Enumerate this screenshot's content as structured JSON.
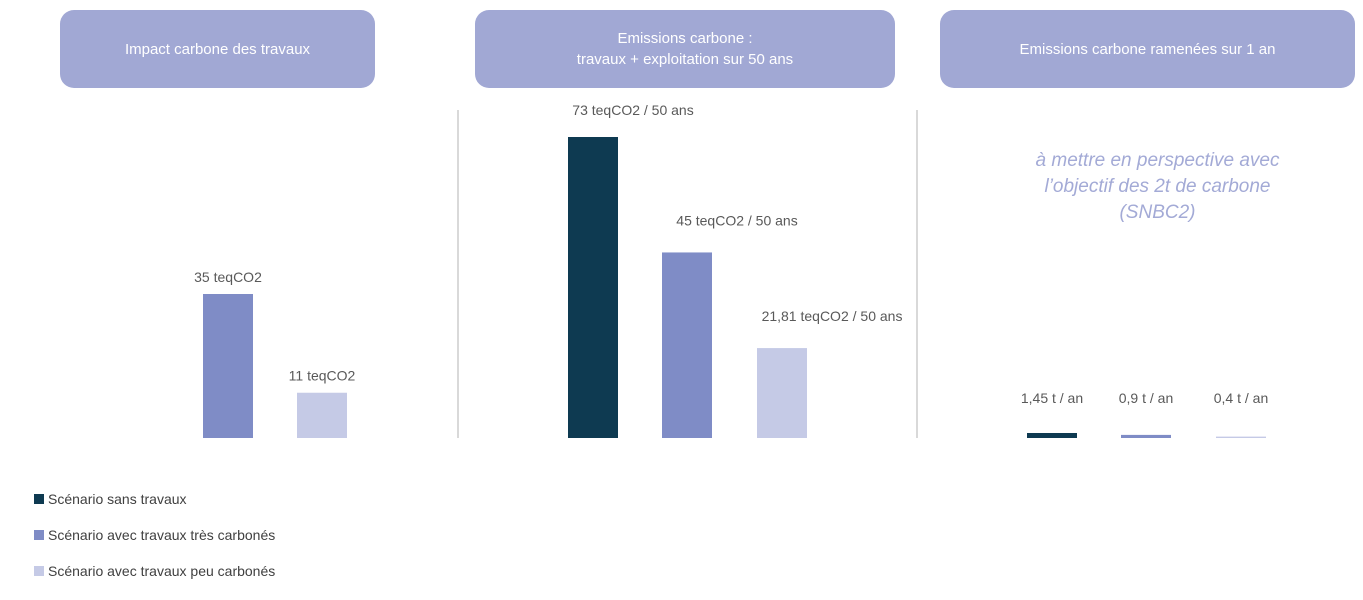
{
  "panels": [
    {
      "title_lines": [
        "Impact carbone des travaux"
      ]
    },
    {
      "title_lines": [
        "Emissions carbone :",
        "travaux + exploitation sur 50 ans"
      ]
    },
    {
      "title_lines": [
        "Emissions carbone ramenées sur 1 an"
      ]
    }
  ],
  "note": {
    "lines": [
      "à mettre en perspective avec",
      "l’objectif des 2t de carbone",
      "(SNBC2)"
    ]
  },
  "colors": {
    "header_bg": "#a1a8d4",
    "sans_travaux": "#0e3a51",
    "tres_carbones": "#7f8cc6",
    "peu_carbones": "#c5cae6",
    "note_text": "#a3aad6"
  },
  "legend": [
    {
      "label": "Scénario sans travaux",
      "color_key": "sans_travaux"
    },
    {
      "label": "Scénario avec travaux très carbonés",
      "color_key": "tres_carbones"
    },
    {
      "label": "Scénario avec travaux peu carbonés",
      "color_key": "peu_carbones"
    }
  ],
  "chart_data": [
    {
      "type": "bar",
      "title": "Impact carbone des travaux",
      "unit": "teqCO2",
      "bars": [
        {
          "series": "Scénario avec travaux très carbonés",
          "value": 35,
          "label": "35 teqCO2",
          "color_key": "tres_carbones"
        },
        {
          "series": "Scénario avec travaux peu carbonés",
          "value": 11,
          "label": "11  teqCO2",
          "color_key": "peu_carbones"
        }
      ]
    },
    {
      "type": "bar",
      "title": "Emissions carbone : travaux + exploitation sur 50 ans",
      "unit": "teqCO2 / 50 ans",
      "bars": [
        {
          "series": "Scénario sans travaux",
          "value": 73,
          "label": "73 teqCO2 / 50 ans",
          "color_key": "sans_travaux"
        },
        {
          "series": "Scénario avec travaux très carbonés",
          "value": 45,
          "label": "45 teqCO2 / 50 ans",
          "color_key": "tres_carbones"
        },
        {
          "series": "Scénario avec travaux peu carbonés",
          "value": 21.81,
          "label": "21,81 teqCO2 / 50 ans",
          "color_key": "peu_carbones"
        }
      ]
    },
    {
      "type": "bar",
      "title": "Emissions carbone ramenées sur 1 an",
      "unit": "t / an",
      "bars": [
        {
          "series": "Scénario sans travaux",
          "value": 1.45,
          "label": "1,45 t / an",
          "color_key": "sans_travaux"
        },
        {
          "series": "Scénario avec travaux très carbonés",
          "value": 0.9,
          "label": "0,9 t / an",
          "color_key": "tres_carbones"
        },
        {
          "series": "Scénario avec travaux peu carbonés",
          "value": 0.4,
          "label": "0,4 t / an",
          "color_key": "peu_carbones"
        }
      ]
    }
  ]
}
